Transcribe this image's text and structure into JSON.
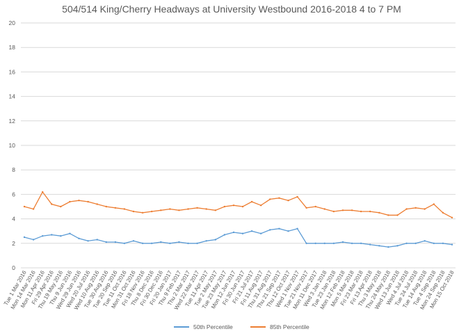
{
  "chart_data": {
    "type": "line",
    "title": "504/514 King/Cherry Headways at University Westbound 2016-2018 4 to 7 PM",
    "xlabel": "",
    "ylabel": "",
    "ylim": [
      0,
      20
    ],
    "yticks": [
      0,
      2,
      4,
      6,
      8,
      10,
      12,
      14,
      16,
      18,
      20
    ],
    "grid": true,
    "legend": "bottom",
    "x": [
      "Tue 1 Mar 2016",
      "Mon 14 Mar 2016",
      "Mon 11 Apr 2016",
      "Fri 29 Apr 2016",
      "Thu 19 May 2016",
      "Thu 9 Jun 2016",
      "Wed 29 Jun 2016",
      "Wed 20 Jul 2016",
      "Wed 10 Aug 2016",
      "Tue 30 Aug 2016",
      "Tue 20 Sep 2016",
      "Tue 11 Oct 2016",
      "Mon 31 Oct 2016",
      "Fri 18 Nov 2016",
      "Thu 8 Dec 2016",
      "Fri 30 Dec 2016",
      "Fri 20 Jan 2017",
      "Thu 9 Feb 2017",
      "Thu 2 Mar 2017",
      "Wed 22 Mar 2017",
      "Tue 11 Apr 2017",
      "Tue 2 May 2017",
      "Tue 23 May 2017",
      "Mon 12 Jun 2017",
      "Fri 30 Jun 2017",
      "Fri 21 Jul 2017",
      "Fri 11 Aug 2017",
      "Thu 31 Aug 2017",
      "Thu 21 Sep 2017",
      "Thu 12 Oct 2017",
      "Wed 1 Nov 2017",
      "Tue 21 Nov 2017",
      "Mon 11 Dec 2017",
      "Wed 3 Jan 2018",
      "Tue 23 Jan 2018",
      "Mon 12 Feb 2018",
      "Mon 5 Mar 2018",
      "Fri 23 Mar 2018",
      "Fri 13 Apr 2018",
      "Thu 3 May 2018",
      "Thu 24 May 2018",
      "Wed 13 Jun 2018",
      "Wed 4 Jul 2018",
      "Tue 24 Jul 2018",
      "Tue 14 Aug 2018",
      "Tue 4 Sep 2018",
      "Mon 24 Sep 2018",
      "Mon 15 Oct 2018"
    ],
    "series": [
      {
        "name": "50th Percentile",
        "color": "#5b9bd5",
        "values": [
          2.5,
          2.3,
          2.6,
          2.7,
          2.6,
          2.8,
          2.4,
          2.2,
          2.3,
          2.1,
          2.1,
          2.0,
          2.2,
          2.0,
          2.0,
          2.1,
          2.0,
          2.1,
          2.0,
          2.0,
          2.2,
          2.3,
          2.7,
          2.9,
          2.8,
          3.0,
          2.8,
          3.1,
          3.2,
          3.0,
          3.2,
          2.0,
          2.0,
          2.0,
          2.0,
          2.1,
          2.0,
          2.0,
          1.9,
          1.8,
          1.7,
          1.8,
          2.0,
          2.0,
          2.2,
          2.0,
          2.0,
          1.9
        ]
      },
      {
        "name": "85th Percentile",
        "color": "#ed7d31",
        "values": [
          5.0,
          4.8,
          6.2,
          5.2,
          5.0,
          5.4,
          5.5,
          5.4,
          5.2,
          5.0,
          4.9,
          4.8,
          4.6,
          4.5,
          4.6,
          4.7,
          4.8,
          4.7,
          4.8,
          4.9,
          4.8,
          4.7,
          5.0,
          5.1,
          5.0,
          5.4,
          5.1,
          5.6,
          5.7,
          5.5,
          5.8,
          4.9,
          5.0,
          4.8,
          4.6,
          4.7,
          4.7,
          4.6,
          4.6,
          4.5,
          4.3,
          4.3,
          4.8,
          4.9,
          4.8,
          5.2,
          4.5,
          4.1
        ]
      }
    ]
  }
}
